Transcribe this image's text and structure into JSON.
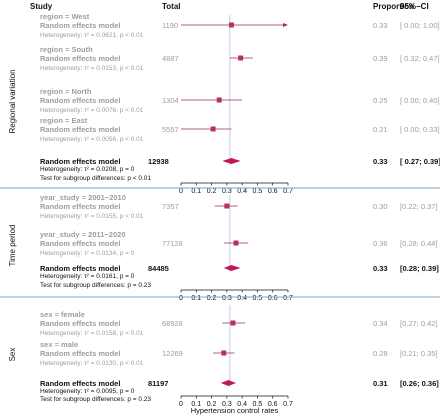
{
  "header": {
    "study": "Study",
    "total": "Total",
    "proportion": "Proportion",
    "ci": "95%−CI"
  },
  "colors": {
    "marker": "#b5325f",
    "summary": "#c2185b",
    "ci_line": "#9c2a55",
    "grey_text": "#9e9e9e",
    "divider": "#7aa3d6",
    "reference": "#bdbdf0"
  },
  "chart_data": {
    "type": "forest",
    "xlabel": "Hypertension control rates",
    "xlim": [
      0,
      0.7
    ],
    "ticks": [
      "0",
      "0.1",
      "0.2",
      "0.3",
      "0.4",
      "0.5",
      "0.6",
      "0.7"
    ],
    "reference_value": 0.32,
    "sections": [
      {
        "label": "Regional variation",
        "subgroups": [
          {
            "title": "region = West",
            "model": "Random effects model",
            "het": "Heterogeneity: τ² = 0.0621, p < 0.01",
            "total": "1190",
            "est": 0.33,
            "lo": 0.0,
            "hi": 1.0,
            "prop": "0.33",
            "ci": "[ 0.00; 1.00]"
          },
          {
            "title": "region = South",
            "model": "Random effects model",
            "het": "Heterogeneity: τ² = 0.0153, p < 0.01",
            "total": "4887",
            "est": 0.39,
            "lo": 0.32,
            "hi": 0.47,
            "prop": "0.39",
            "ci": "[ 0.32; 0.47]"
          },
          {
            "title": "region = North",
            "model": "Random effects model",
            "het": "Heterogeneity: τ² = 0.0076, p < 0.01",
            "total": "1304",
            "est": 0.25,
            "lo": 0.0,
            "hi": 0.4,
            "prop": "0.25",
            "ci": "[ 0.00; 0.40]"
          },
          {
            "title": "region = East",
            "model": "Random effects model",
            "het": "Heterogeneity: τ² = 0.0056, p < 0.01",
            "total": "5557",
            "est": 0.21,
            "lo": 0.0,
            "hi": 0.33,
            "prop": "0.21",
            "ci": "[ 0.00; 0.33]"
          }
        ],
        "overall": {
          "model": "Random effects model",
          "total": "12938",
          "est": 0.33,
          "lo": 0.27,
          "hi": 0.39,
          "prop": "0.33",
          "ci": "[ 0.27; 0.39]",
          "het": "Heterogeneity: τ² = 0.0208, p = 0",
          "test": "Test for subgroup differences:  p < 0.01"
        }
      },
      {
        "label": "Time period",
        "subgroups": [
          {
            "title": "year_study = 2001−2010",
            "model": "Random effects model",
            "het": "Heterogeneity: τ² = 0.0155, p < 0.01",
            "total": "7357",
            "est": 0.3,
            "lo": 0.22,
            "hi": 0.37,
            "prop": "0.30",
            "ci": "[0.22; 0.37]"
          },
          {
            "title": "year_study = 2011−2020",
            "model": "Random effects model",
            "het": "Heterogeneity: τ² = 0.0134, p = 0",
            "total": "77128",
            "est": 0.36,
            "lo": 0.28,
            "hi": 0.44,
            "prop": "0.36",
            "ci": "[0.28; 0.44]"
          }
        ],
        "overall": {
          "model": "Random effects model",
          "total": "84485",
          "est": 0.33,
          "lo": 0.28,
          "hi": 0.39,
          "prop": "0.33",
          "ci": "[0.28; 0.39]",
          "het": "Heterogeneity: τ² = 0.0161, p = 0",
          "test": "Test for subgroup differences:  p = 0.23"
        }
      },
      {
        "label": "Sex",
        "subgroups": [
          {
            "title": "sex = female",
            "model": "Random effects model",
            "het": "Heterogeneity: τ² = 0.0158, p < 0.01",
            "total": "68928",
            "est": 0.34,
            "lo": 0.27,
            "hi": 0.42,
            "prop": "0.34",
            "ci": "[0.27; 0.42]"
          },
          {
            "title": "sex = male",
            "model": "Random effects model",
            "het": "Heterogeneity: τ² = 0.0130, p < 0.01",
            "total": "12269",
            "est": 0.28,
            "lo": 0.21,
            "hi": 0.35,
            "prop": "0.28",
            "ci": "[0.21; 0.35]"
          }
        ],
        "overall": {
          "model": "Random effects model",
          "total": "81197",
          "est": 0.31,
          "lo": 0.26,
          "hi": 0.36,
          "prop": "0.31",
          "ci": "[0.26; 0.36]",
          "het": "Heterogeneity: τ² = 0.0095, p = 0",
          "test": "Test for subgroup differences:  p = 0.23"
        }
      }
    ]
  }
}
